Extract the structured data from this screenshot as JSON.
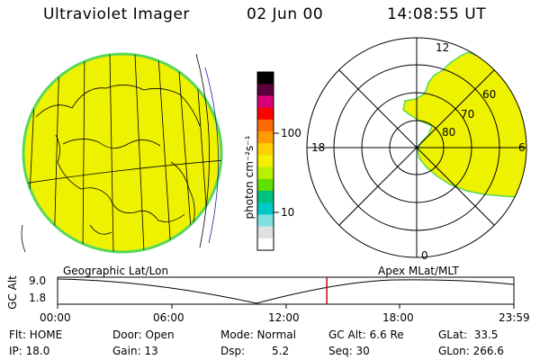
{
  "header": {
    "title": "Ultraviolet Imager",
    "date": "02 Jun 00",
    "time": "14:08:55 UT"
  },
  "colorbar": {
    "unit": "photon cm⁻²s⁻¹",
    "ticks": [
      "100",
      "10"
    ],
    "colors": [
      "#000000",
      "#5a003a",
      "#d8007a",
      "#ff0000",
      "#ff6a00",
      "#ff9a00",
      "#ffd000",
      "#f4f000",
      "#b8f000",
      "#60e000",
      "#00c080",
      "#00c8c8",
      "#80e0e0",
      "#e0e0e0",
      "#ffffff"
    ]
  },
  "polar": {
    "labels": {
      "noon": "12",
      "midnight": "0",
      "dusk": "18",
      "dawn": "6"
    },
    "lat_labels": [
      "80",
      "70",
      "60"
    ]
  },
  "orbit": {
    "left_label": "Geographic Lat/Lon",
    "right_label": "Apex MLat/MLT",
    "axis_label": "GC Alt",
    "y_ticks": [
      "9.0",
      "1.8"
    ],
    "x_ticks": [
      "00:00",
      "06:00",
      "12:00",
      "18:00",
      "23:59"
    ],
    "current_time_fraction": 0.59
  },
  "info": {
    "flt": "Flt: HOME",
    "ip": "IP: 18.0",
    "door": "Door: Open",
    "gain": "Gain: 13",
    "mode": "Mode: Normal",
    "dsp_label": "Dsp:",
    "dsp_value": "5.2",
    "gcalt": "GC Alt: 6.6 Re",
    "seq": "Seq: 30",
    "glat": "GLat:  33.5",
    "glon": "GLon: 266.6"
  },
  "colors": {
    "globe_fill": "#eef200",
    "globe_edge": "#58d858",
    "marker": "#d00000"
  }
}
